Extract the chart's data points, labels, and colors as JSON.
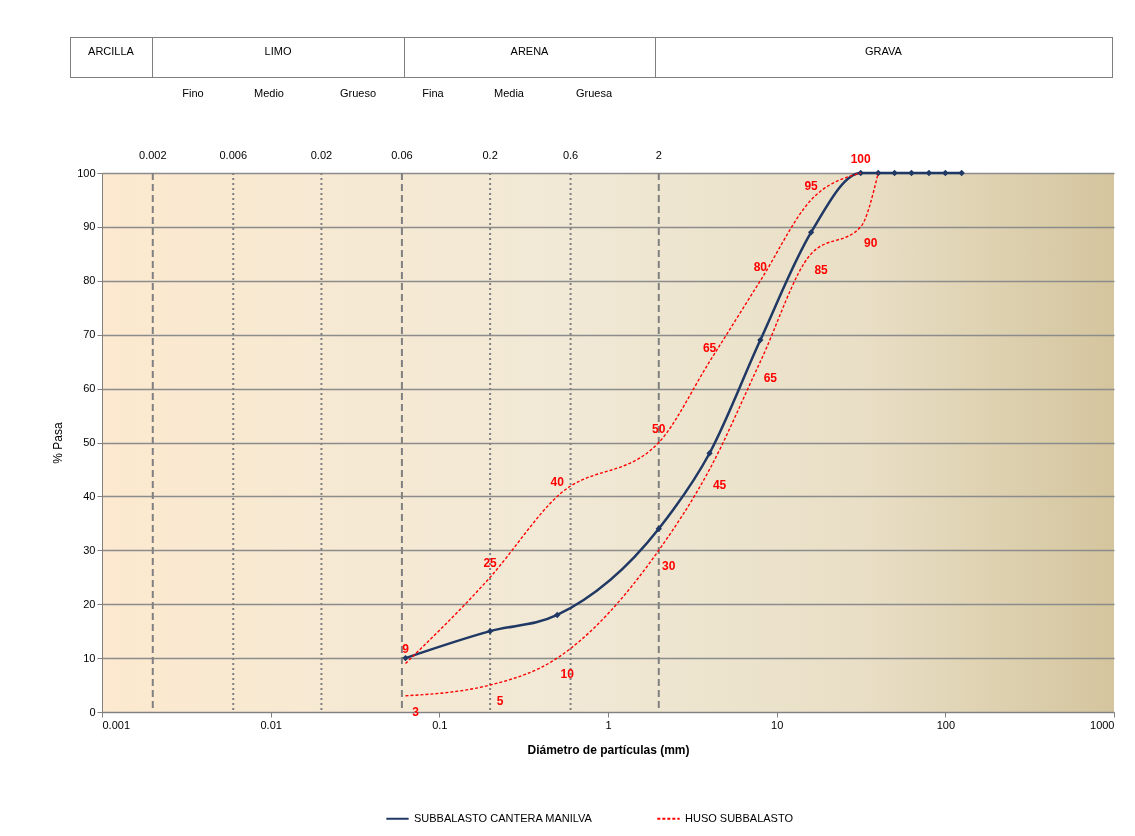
{
  "chart_data": {
    "type": "line",
    "xlabel": "Diámetro de partículas (mm)",
    "ylabel": "% Pasa",
    "log": "x",
    "xlim": [
      0.001,
      1000
    ],
    "xticks": [
      0.001,
      0.01,
      0.1,
      1,
      10,
      100,
      1000
    ],
    "ylim": [
      0,
      100
    ],
    "yticks": [
      0,
      10,
      20,
      30,
      40,
      50,
      60,
      70,
      80,
      90,
      100
    ],
    "grid": "y",
    "legend": "bottom",
    "series": [
      {
        "name": "SUBBALASTO CANTERA MANILVA",
        "color": "#1f3864",
        "marker": "diamond",
        "line_style": "solid",
        "x": [
          0.063,
          0.2,
          0.5,
          2,
          4,
          8,
          16,
          31.5,
          40,
          50,
          63,
          80,
          100,
          125
        ],
        "values": [
          10,
          15,
          18,
          34,
          48,
          69,
          89,
          100,
          100,
          100,
          100,
          100,
          100,
          100
        ]
      },
      {
        "name": "HUSO SUBBALASTO",
        "color": "#ff0000",
        "marker": "none",
        "line_style": "dashed",
        "x": [
          0.063,
          0.2,
          0.5,
          2,
          4,
          8,
          16,
          31.5
        ],
        "values": [
          9,
          25,
          40,
          50,
          65,
          80,
          95,
          100
        ],
        "value_labels": [
          "9",
          "25",
          "40",
          "50",
          "65",
          "80",
          "95",
          "100"
        ]
      },
      {
        "color": "#ff0000",
        "marker": "none",
        "line_style": "dashed",
        "x": [
          0.063,
          0.2,
          0.5,
          2,
          4,
          8,
          16,
          31.5,
          40
        ],
        "values": [
          3,
          5,
          10,
          30,
          45,
          65,
          85,
          90,
          100
        ],
        "value_labels": [
          "3",
          "5",
          "10",
          "30",
          "45",
          "65",
          "85",
          "90",
          null
        ]
      }
    ],
    "ref_lines": [
      {
        "axis": "x",
        "value": 0.002,
        "label": "0.002",
        "color": "#808080",
        "line_style": "dashed"
      },
      {
        "axis": "x",
        "value": 0.006,
        "label": "0.006",
        "color": "#808080",
        "line_style": "dotted"
      },
      {
        "axis": "x",
        "value": 0.02,
        "label": "0.02",
        "color": "#808080",
        "line_style": "dotted"
      },
      {
        "axis": "x",
        "value": 0.06,
        "label": "0.06",
        "color": "#808080",
        "line_style": "dashed"
      },
      {
        "axis": "x",
        "value": 0.2,
        "label": "0.2",
        "color": "#808080",
        "line_style": "dotted"
      },
      {
        "axis": "x",
        "value": 0.6,
        "label": "0.6",
        "color": "#808080",
        "line_style": "dotted"
      },
      {
        "axis": "x",
        "value": 2,
        "label": "2",
        "color": "#808080",
        "line_style": "dashed"
      }
    ],
    "annotations": [
      "ARCILLA",
      "LIMO",
      "ARENA",
      "GRAVA",
      "Fino",
      "Medio",
      "Grueso",
      "Fina",
      "Media",
      "Gruesa"
    ]
  }
}
